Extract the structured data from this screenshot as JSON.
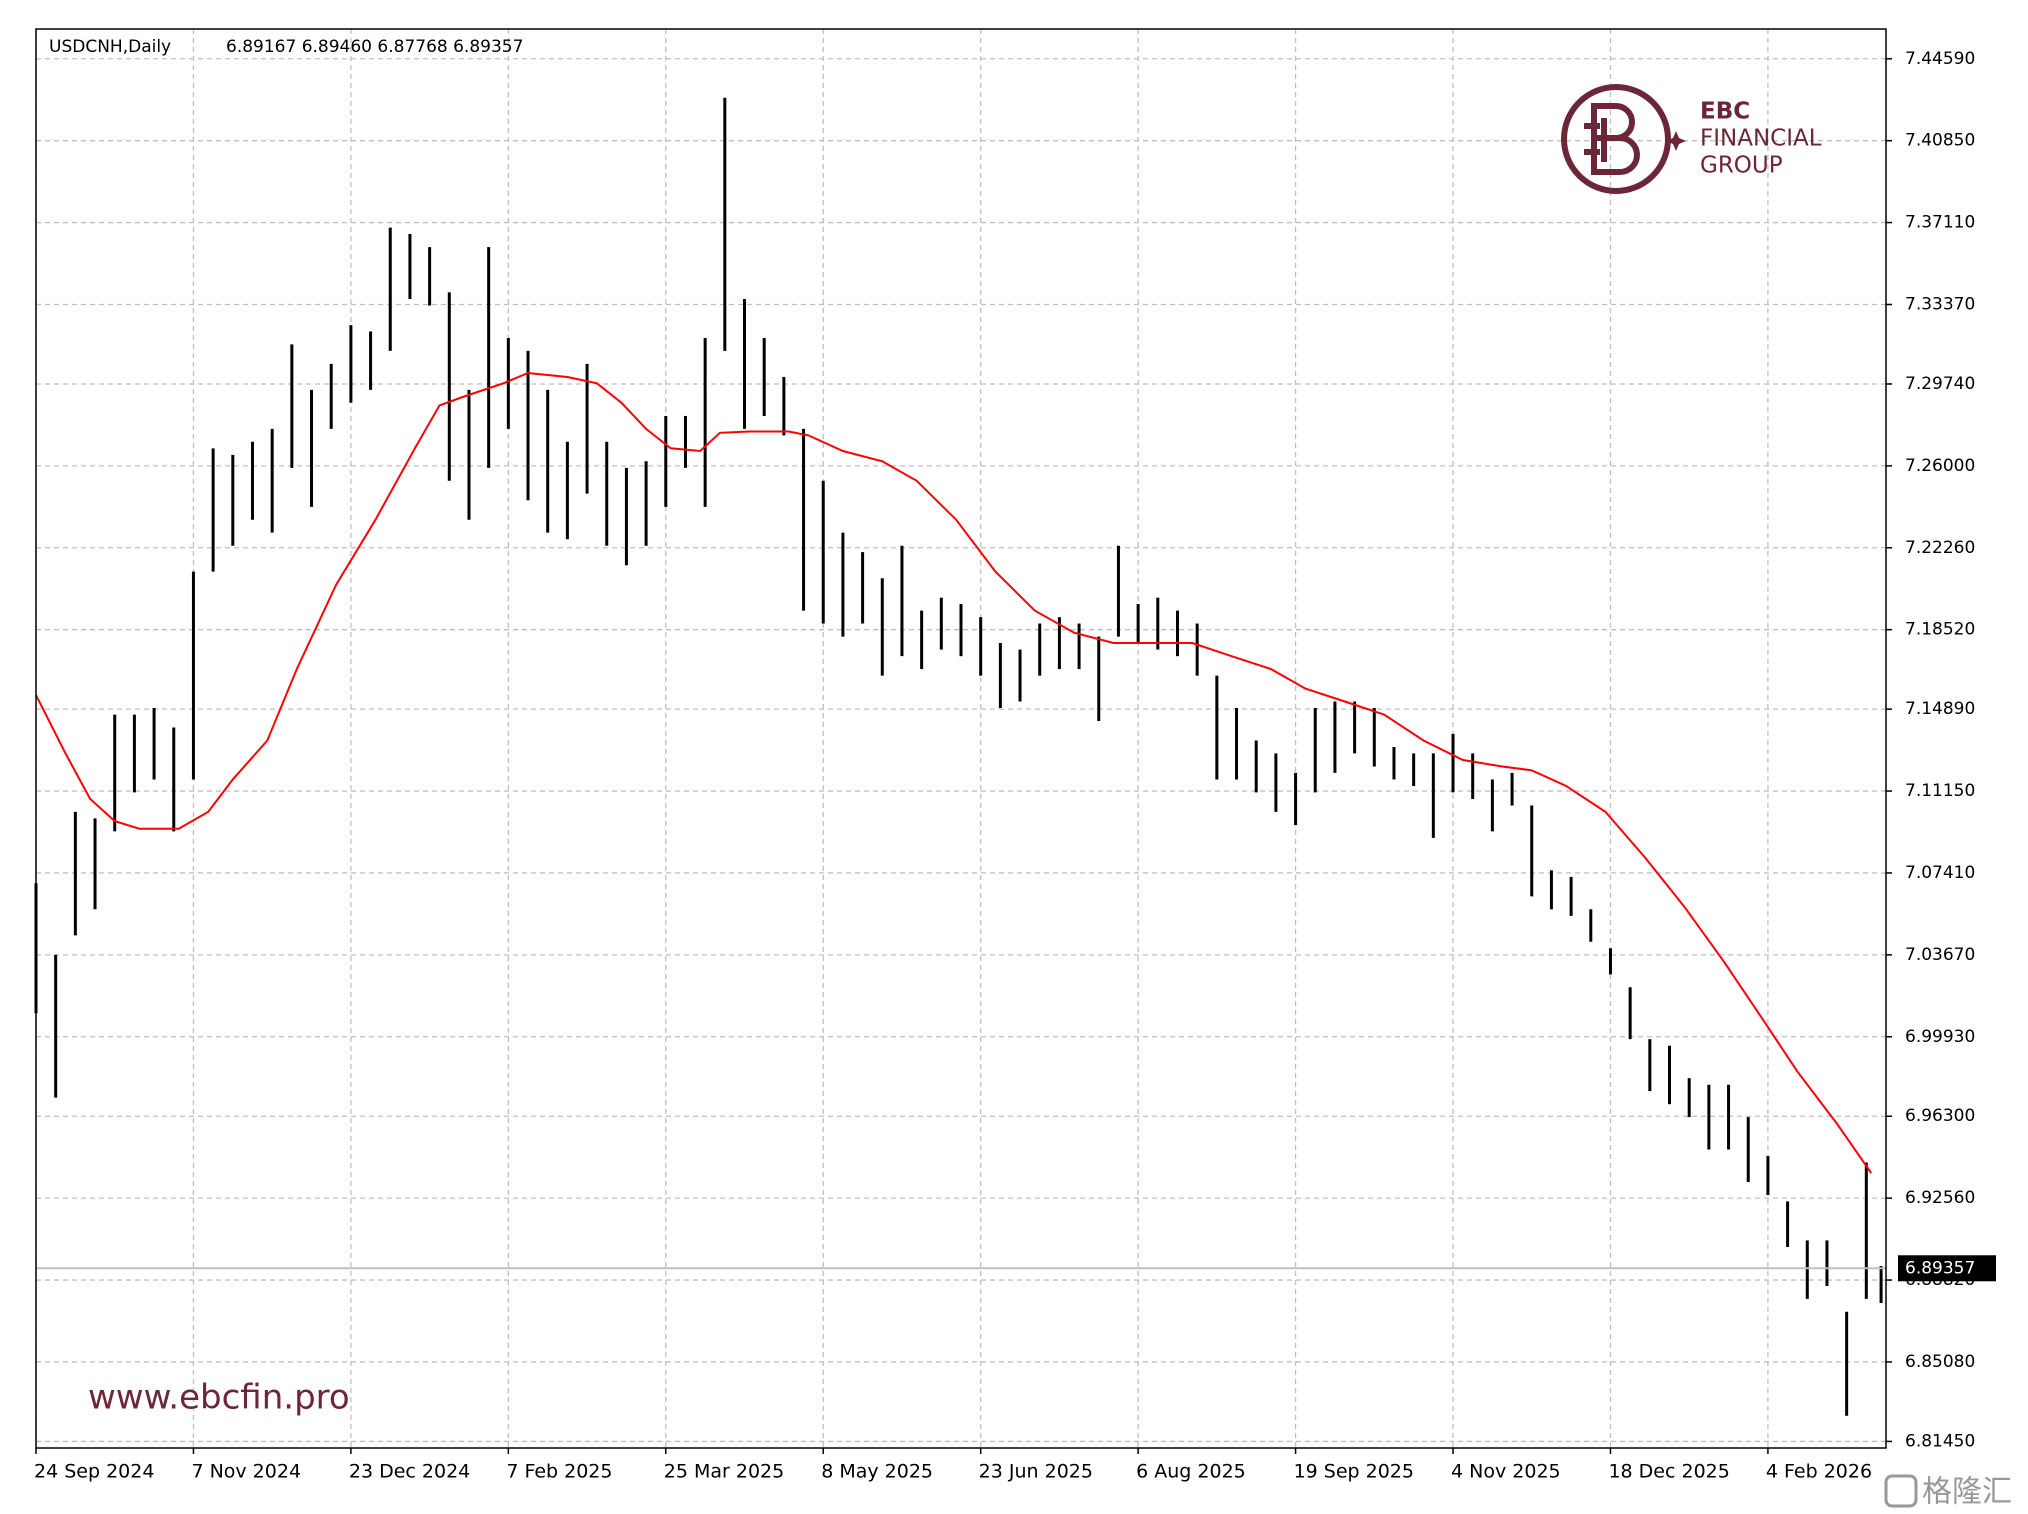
{
  "chart_data": {
    "type": "ohlc",
    "title": "USDCNH,Daily",
    "subtitle": "6.89167 6.89460 6.87768 6.89357",
    "grid": true,
    "ylim": [
      6.8115,
      7.4595
    ],
    "yticks": [
      {
        "value": 7.4459,
        "label": "7.44590"
      },
      {
        "value": 7.4085,
        "label": "7.40850"
      },
      {
        "value": 7.3711,
        "label": "7.37110"
      },
      {
        "value": 7.3337,
        "label": "7.33370"
      },
      {
        "value": 7.2974,
        "label": "7.29740"
      },
      {
        "value": 7.26,
        "label": "7.26000"
      },
      {
        "value": 7.2226,
        "label": "7.22260"
      },
      {
        "value": 7.1852,
        "label": "7.18520"
      },
      {
        "value": 7.1489,
        "label": "7.14890"
      },
      {
        "value": 7.1115,
        "label": "7.11150"
      },
      {
        "value": 7.0741,
        "label": "7.07410"
      },
      {
        "value": 7.0367,
        "label": "7.03670"
      },
      {
        "value": 6.9993,
        "label": "6.99930"
      },
      {
        "value": 6.963,
        "label": "6.96300"
      },
      {
        "value": 6.9256,
        "label": "6.92560"
      },
      {
        "value": 6.8882,
        "label": "6.88820"
      },
      {
        "value": 6.8508,
        "label": "6.85080"
      },
      {
        "value": 6.8145,
        "label": "6.81450"
      }
    ],
    "xlim": [
      0,
      376
    ],
    "xticks": [
      {
        "value": 0,
        "label": "24 Sep 2024"
      },
      {
        "value": 32,
        "label": "7 Nov 2024"
      },
      {
        "value": 64,
        "label": "23 Dec 2024"
      },
      {
        "value": 96,
        "label": "7 Feb 2025"
      },
      {
        "value": 128,
        "label": "25 Mar 2025"
      },
      {
        "value": 160,
        "label": "8 May 2025"
      },
      {
        "value": 192,
        "label": "23 Jun 2025"
      },
      {
        "value": 224,
        "label": "6 Aug 2025"
      },
      {
        "value": 256,
        "label": "19 Sep 2025"
      },
      {
        "value": 288,
        "label": "4 Nov 2025"
      },
      {
        "value": 320,
        "label": "18 Dec 2025"
      },
      {
        "value": 352,
        "label": "4 Feb 2026"
      }
    ],
    "current_price": 6.89357,
    "current_price_color": "#000000",
    "bars": {
      "color": "#000000",
      "x": [
        0,
        4,
        8,
        12,
        16,
        20,
        24,
        28,
        32,
        36,
        40,
        44,
        48,
        52,
        56,
        60,
        64,
        68,
        72,
        76,
        80,
        84,
        88,
        92,
        96,
        100,
        104,
        108,
        112,
        116,
        120,
        124,
        128,
        132,
        136,
        140,
        144,
        148,
        152,
        156,
        160,
        164,
        168,
        172,
        176,
        180,
        184,
        188,
        192,
        196,
        200,
        204,
        208,
        212,
        216,
        220,
        224,
        228,
        232,
        236,
        240,
        244,
        248,
        252,
        256,
        260,
        264,
        268,
        272,
        276,
        280,
        284,
        288,
        292,
        296,
        300,
        304,
        308,
        312,
        316,
        320,
        324,
        328,
        332,
        336,
        340,
        344,
        348,
        352,
        356,
        360,
        364,
        368,
        372,
        375
      ],
      "high": [
        7.0694,
        7.0367,
        7.102,
        7.099,
        7.1464,
        7.1464,
        7.1494,
        7.1405,
        7.2117,
        7.268,
        7.265,
        7.271,
        7.2769,
        7.3155,
        7.2947,
        7.3066,
        7.3243,
        7.3214,
        7.3688,
        7.3659,
        7.3599,
        7.3392,
        7.2947,
        7.3599,
        7.3184,
        7.3125,
        7.2947,
        7.271,
        7.3066,
        7.271,
        7.2591,
        7.2621,
        7.2828,
        7.2828,
        7.3184,
        7.4281,
        7.3362,
        7.3184,
        7.3006,
        7.2769,
        7.2532,
        7.2295,
        7.2206,
        7.2087,
        7.2235,
        7.1939,
        7.1998,
        7.1969,
        7.1909,
        7.1791,
        7.1761,
        7.188,
        7.1909,
        7.188,
        7.182,
        7.2235,
        7.1969,
        7.1998,
        7.1939,
        7.188,
        7.1642,
        7.1494,
        7.1346,
        7.1287,
        7.1198,
        7.1494,
        7.1524,
        7.1524,
        7.1494,
        7.1316,
        7.1287,
        7.1287,
        7.1376,
        7.1287,
        7.1168,
        7.1198,
        7.1049,
        7.0753,
        7.0723,
        7.0575,
        7.0397,
        7.0219,
        6.9982,
        6.9952,
        6.9804,
        6.9774,
        6.9774,
        6.9626,
        6.9448,
        6.9241,
        6.9063,
        6.9063,
        6.8737,
        6.9419,
        6.8946
      ],
      "low": [
        7.0101,
        6.9715,
        7.0456,
        7.0575,
        7.0931,
        7.1109,
        7.1168,
        7.0931,
        7.1168,
        7.2117,
        7.2235,
        7.2354,
        7.2295,
        7.2591,
        7.2413,
        7.2769,
        7.2888,
        7.2947,
        7.3125,
        7.3362,
        7.3332,
        7.2532,
        7.2354,
        7.2591,
        7.2769,
        7.2443,
        7.2295,
        7.2265,
        7.2473,
        7.2235,
        7.2146,
        7.2235,
        7.2413,
        7.2591,
        7.2413,
        7.3125,
        7.2769,
        7.2828,
        7.2739,
        7.1939,
        7.188,
        7.182,
        7.188,
        7.1642,
        7.1731,
        7.1672,
        7.1761,
        7.1731,
        7.1642,
        7.1494,
        7.1524,
        7.1642,
        7.1672,
        7.1672,
        7.1435,
        7.182,
        7.1791,
        7.1761,
        7.1731,
        7.1642,
        7.1168,
        7.1168,
        7.1109,
        7.102,
        7.096,
        7.1109,
        7.1198,
        7.1287,
        7.1227,
        7.1168,
        7.1138,
        7.0901,
        7.1109,
        7.1079,
        7.0931,
        7.1049,
        7.0634,
        7.0575,
        7.0545,
        7.0427,
        7.0278,
        6.9982,
        6.9745,
        6.9685,
        6.9626,
        6.9478,
        6.9478,
        6.933,
        6.927,
        6.9033,
        6.8796,
        6.8855,
        6.8262,
        6.8796,
        6.8777
      ]
    },
    "ma": {
      "color": "#ff0000",
      "x": [
        0,
        6,
        11,
        16,
        21,
        29,
        35,
        40,
        47,
        53,
        61,
        69,
        77,
        82,
        87,
        95,
        100,
        108,
        114,
        119,
        124,
        129,
        135,
        139,
        145,
        153,
        157,
        164,
        172,
        179,
        187,
        195,
        203,
        211,
        219,
        227,
        235,
        243,
        251,
        258,
        266,
        274,
        282,
        290,
        298,
        304,
        311,
        319,
        327,
        335,
        343,
        351,
        358,
        366,
        373
      ],
      "values": [
        7.1553,
        7.1287,
        7.1079,
        7.0978,
        7.0943,
        7.0943,
        7.102,
        7.1168,
        7.1346,
        7.1672,
        7.2057,
        7.2354,
        7.268,
        7.2876,
        7.2917,
        7.2977,
        7.3024,
        7.3006,
        7.2977,
        7.2888,
        7.2769,
        7.268,
        7.2668,
        7.2751,
        7.2757,
        7.2757,
        7.2739,
        7.2668,
        7.2621,
        7.2532,
        7.2354,
        7.2117,
        7.1939,
        7.1838,
        7.1791,
        7.1791,
        7.1791,
        7.1731,
        7.1672,
        7.1583,
        7.1524,
        7.1464,
        7.1346,
        7.1257,
        7.1227,
        7.121,
        7.1138,
        7.102,
        7.0812,
        7.0587,
        7.0338,
        7.0071,
        6.9834,
        6.9597,
        6.9371
      ]
    }
  },
  "branding": {
    "logo_lines": [
      "EBC",
      "FINANCIAL",
      "GROUP"
    ],
    "website": "www.ebcfin.pro",
    "watermark": "格隆汇"
  }
}
